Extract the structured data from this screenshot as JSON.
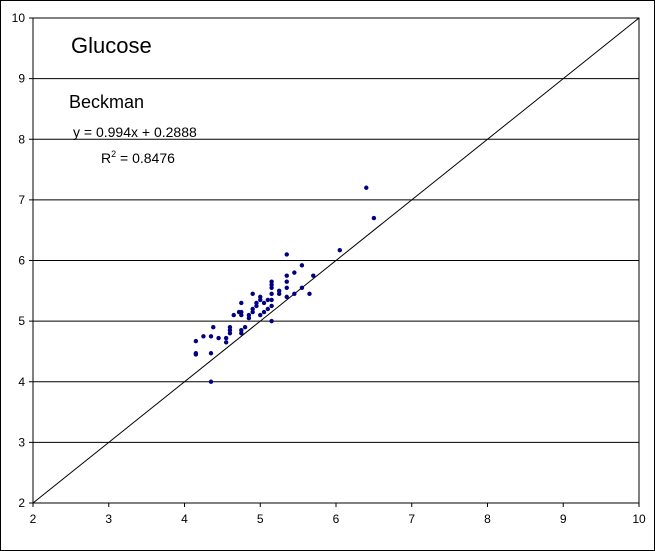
{
  "chart_data": {
    "type": "scatter",
    "title": "Glucose",
    "subtitle": "Beckman",
    "equation": "y = 0.994x + 0.2888",
    "r2_prefix": "R",
    "r2_sup": "2",
    "r2_value": " = 0.8476",
    "xlim": [
      2,
      10
    ],
    "ylim": [
      2,
      10
    ],
    "x_ticks": [
      "2",
      "3",
      "4",
      "5",
      "6",
      "7",
      "8",
      "9",
      "10"
    ],
    "y_ticks": [
      "2",
      "3",
      "4",
      "5",
      "6",
      "7",
      "8",
      "9",
      "10"
    ],
    "grid": "horizontal",
    "reference_line": {
      "x": [
        2,
        10
      ],
      "y": [
        2,
        10
      ]
    },
    "colors": {
      "points": "#000080",
      "grid": "#000000",
      "line": "#000000"
    },
    "points": [
      [
        4.15,
        4.67
      ],
      [
        4.15,
        4.47
      ],
      [
        4.15,
        4.45
      ],
      [
        4.25,
        4.75
      ],
      [
        4.35,
        4.75
      ],
      [
        4.35,
        4.47
      ],
      [
        4.38,
        4.9
      ],
      [
        4.35,
        4.0
      ],
      [
        4.45,
        4.72
      ],
      [
        4.55,
        4.65
      ],
      [
        4.55,
        4.72
      ],
      [
        4.6,
        4.8
      ],
      [
        4.6,
        4.85
      ],
      [
        4.6,
        4.9
      ],
      [
        4.65,
        5.1
      ],
      [
        4.72,
        5.15
      ],
      [
        4.75,
        4.8
      ],
      [
        4.75,
        4.85
      ],
      [
        4.75,
        5.1
      ],
      [
        4.75,
        5.15
      ],
      [
        4.75,
        5.3
      ],
      [
        4.8,
        4.9
      ],
      [
        4.85,
        5.05
      ],
      [
        4.85,
        5.1
      ],
      [
        4.9,
        5.15
      ],
      [
        4.9,
        5.2
      ],
      [
        4.9,
        5.45
      ],
      [
        4.95,
        5.25
      ],
      [
        4.95,
        5.3
      ],
      [
        5.0,
        5.1
      ],
      [
        5.0,
        5.35
      ],
      [
        5.0,
        5.4
      ],
      [
        5.05,
        5.3
      ],
      [
        5.05,
        5.15
      ],
      [
        5.1,
        5.2
      ],
      [
        5.1,
        5.35
      ],
      [
        5.15,
        5.0
      ],
      [
        5.15,
        5.25
      ],
      [
        5.15,
        5.35
      ],
      [
        5.15,
        5.45
      ],
      [
        5.15,
        5.55
      ],
      [
        5.15,
        5.6
      ],
      [
        5.15,
        5.65
      ],
      [
        5.25,
        5.45
      ],
      [
        5.25,
        5.5
      ],
      [
        5.35,
        5.4
      ],
      [
        5.35,
        5.55
      ],
      [
        5.35,
        5.65
      ],
      [
        5.35,
        5.75
      ],
      [
        5.35,
        6.1
      ],
      [
        5.45,
        5.45
      ],
      [
        5.45,
        5.8
      ],
      [
        5.55,
        5.55
      ],
      [
        5.55,
        5.92
      ],
      [
        5.65,
        5.45
      ],
      [
        5.7,
        5.75
      ],
      [
        6.05,
        6.17
      ],
      [
        6.4,
        7.2
      ],
      [
        6.5,
        6.7
      ]
    ]
  }
}
